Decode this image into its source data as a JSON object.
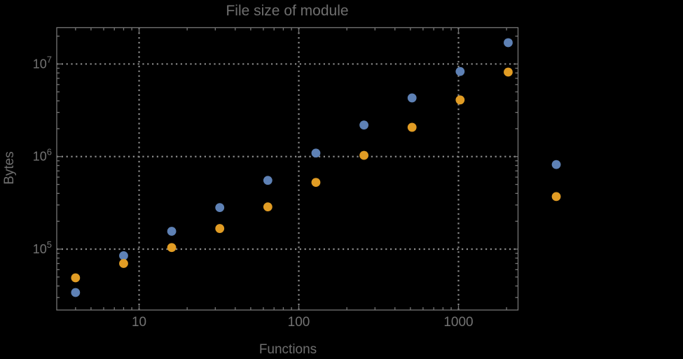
{
  "page": {
    "background": "#000000"
  },
  "chart_data": {
    "type": "scatter",
    "title": "File size of module",
    "xlabel": "Functions",
    "ylabel": "Bytes",
    "xscale": "log",
    "yscale": "log",
    "xlim": [
      3.05,
      2360
    ],
    "ylim": [
      22000,
      24700000
    ],
    "grid": {
      "shown": true,
      "style": "dotted",
      "color": "#8a8a8a"
    },
    "frame_color": "#767676",
    "text_color": "#6f6f6f",
    "tick_label_color": "#737373",
    "legend_position": "none",
    "x_ticks": [
      {
        "value": 10,
        "label": "10"
      },
      {
        "value": 100,
        "label": "100"
      },
      {
        "value": 1000,
        "label": "1000"
      }
    ],
    "y_ticks": [
      {
        "value": 100000,
        "base": "10",
        "exp": "5"
      },
      {
        "value": 1000000,
        "base": "10",
        "exp": "6"
      },
      {
        "value": 10000000,
        "base": "10",
        "exp": "7"
      }
    ],
    "marker": {
      "shape": "circle",
      "radius_px": 6.4
    },
    "series": [
      {
        "name": "blue-series",
        "color": "#5e81b5",
        "x": [
          4,
          8,
          16,
          32,
          64,
          128,
          256,
          512,
          1024,
          2048,
          4096
        ],
        "y": [
          34000,
          85000,
          156000,
          281000,
          553000,
          1090000,
          2190000,
          4300000,
          8300000,
          17000000,
          820000
        ]
      },
      {
        "name": "orange-series",
        "color": "#e19c24",
        "x": [
          4,
          8,
          16,
          32,
          64,
          128,
          256,
          512,
          1024,
          2048,
          4096
        ],
        "y": [
          49000,
          70000,
          104000,
          167000,
          286000,
          526000,
          1030000,
          2070000,
          4090000,
          8180000,
          370000
        ]
      }
    ]
  }
}
